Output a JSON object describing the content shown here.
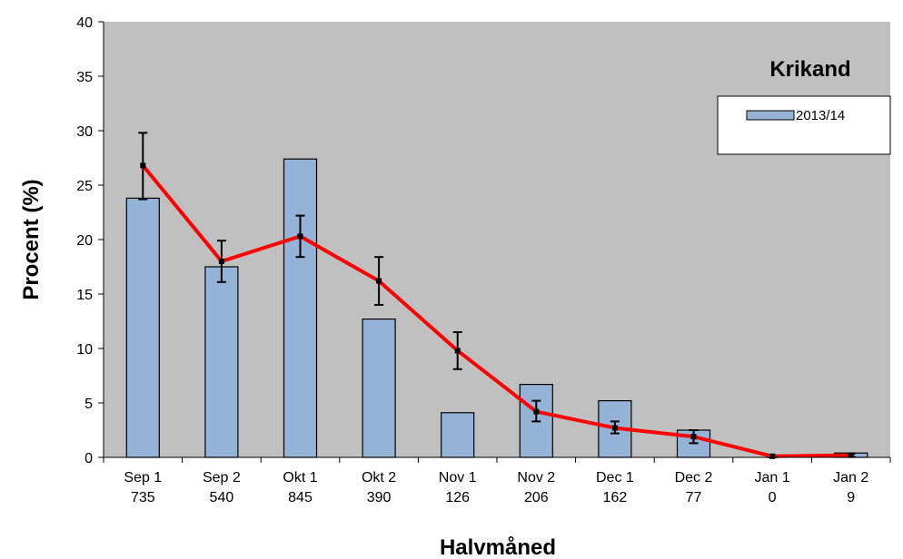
{
  "chart_data": {
    "type": "bar",
    "title": "Krikand",
    "xlabel": "Halvmåned",
    "ylabel": "Procent (%)",
    "ylim": [
      0,
      40
    ],
    "yticks": [
      0,
      5,
      10,
      15,
      20,
      25,
      30,
      35,
      40
    ],
    "categories": [
      "Sep 1",
      "Sep 2",
      "Okt 1",
      "Okt 2",
      "Nov 1",
      "Nov 2",
      "Dec 1",
      "Dec 2",
      "Jan 1",
      "Jan 2"
    ],
    "category_counts": [
      "735",
      "540",
      "845",
      "390",
      "126",
      "206",
      "162",
      "77",
      "0",
      "9"
    ],
    "series": [
      {
        "name": "2013/14",
        "type": "bar",
        "color": "#95b3d7",
        "values": [
          23.8,
          17.5,
          27.4,
          12.7,
          4.1,
          6.7,
          5.2,
          2.5,
          0.0,
          0.4
        ]
      },
      {
        "type": "line",
        "color": "#ff0000",
        "values": [
          26.8,
          18.0,
          20.3,
          16.2,
          9.8,
          4.2,
          2.7,
          1.9,
          0.1,
          0.2
        ],
        "error_low": [
          23.7,
          16.1,
          18.4,
          14.0,
          8.1,
          3.3,
          2.2,
          1.3,
          0.0,
          0.05
        ],
        "error_high": [
          29.8,
          19.9,
          22.2,
          18.4,
          11.5,
          5.2,
          3.3,
          2.5,
          0.2,
          0.35
        ]
      }
    ],
    "grid": false,
    "legend": {
      "position": "top-right",
      "entries": [
        "2013/14"
      ]
    },
    "plot_background": "#c0c0c0"
  }
}
